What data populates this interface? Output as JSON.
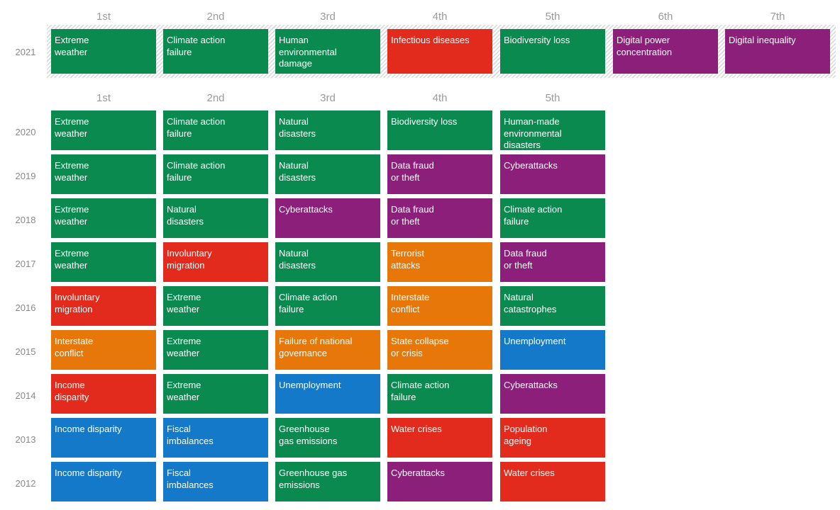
{
  "chart_data": {
    "type": "table",
    "title": "",
    "rank_headers_2021": [
      "1st",
      "2nd",
      "3rd",
      "4th",
      "5th",
      "6th",
      "7th"
    ],
    "rank_headers": [
      "1st",
      "2nd",
      "3rd",
      "4th",
      "5th"
    ],
    "category_colors": {
      "environmental": "#0b8a4f",
      "societal": "#e32b1d",
      "technological": "#8c1f7a",
      "geopolitical": "#e8770a",
      "economic": "#1479c9"
    },
    "rows": [
      {
        "year": "2021",
        "cells": [
          {
            "label": "Extreme\nweather",
            "category": "environmental"
          },
          {
            "label": "Climate action\nfailure",
            "category": "environmental"
          },
          {
            "label": "Human\nenvironmental\ndamage",
            "category": "environmental"
          },
          {
            "label": "Infectious diseases",
            "category": "societal"
          },
          {
            "label": "Biodiversity loss",
            "category": "environmental"
          },
          {
            "label": "Digital power\nconcentration",
            "category": "technological"
          },
          {
            "label": "Digital inequality",
            "category": "technological"
          }
        ]
      },
      {
        "year": "2020",
        "cells": [
          {
            "label": "Extreme\nweather",
            "category": "environmental"
          },
          {
            "label": "Climate action\nfailure",
            "category": "environmental"
          },
          {
            "label": "Natural\ndisasters",
            "category": "environmental"
          },
          {
            "label": "Biodiversity loss",
            "category": "environmental"
          },
          {
            "label": "Human-made\nenvironmental\ndisasters",
            "category": "environmental"
          }
        ]
      },
      {
        "year": "2019",
        "cells": [
          {
            "label": "Extreme\nweather",
            "category": "environmental"
          },
          {
            "label": "Climate action\nfailure",
            "category": "environmental"
          },
          {
            "label": "Natural\ndisasters",
            "category": "environmental"
          },
          {
            "label": "Data fraud\nor theft",
            "category": "technological"
          },
          {
            "label": "Cyberattacks",
            "category": "technological"
          }
        ]
      },
      {
        "year": "2018",
        "cells": [
          {
            "label": "Extreme\nweather",
            "category": "environmental"
          },
          {
            "label": "Natural\ndisasters",
            "category": "environmental"
          },
          {
            "label": "Cyberattacks",
            "category": "technological"
          },
          {
            "label": "Data fraud\nor theft",
            "category": "technological"
          },
          {
            "label": "Climate action\nfailure",
            "category": "environmental"
          }
        ]
      },
      {
        "year": "2017",
        "cells": [
          {
            "label": "Extreme\nweather",
            "category": "environmental"
          },
          {
            "label": "Involuntary\nmigration",
            "category": "societal"
          },
          {
            "label": "Natural\ndisasters",
            "category": "environmental"
          },
          {
            "label": "Terrorist\nattacks",
            "category": "geopolitical"
          },
          {
            "label": "Data fraud\nor theft",
            "category": "technological"
          }
        ]
      },
      {
        "year": "2016",
        "cells": [
          {
            "label": "Involuntary\nmigration",
            "category": "societal"
          },
          {
            "label": "Extreme\nweather",
            "category": "environmental"
          },
          {
            "label": "Climate action\nfailure",
            "category": "environmental"
          },
          {
            "label": "Interstate\nconflict",
            "category": "geopolitical"
          },
          {
            "label": "Natural\ncatastrophes",
            "category": "environmental"
          }
        ]
      },
      {
        "year": "2015",
        "cells": [
          {
            "label": "Interstate\nconflict",
            "category": "geopolitical"
          },
          {
            "label": "Extreme\nweather",
            "category": "environmental"
          },
          {
            "label": "Failure of national\ngovernance",
            "category": "geopolitical"
          },
          {
            "label": "State collapse\nor crisis",
            "category": "geopolitical"
          },
          {
            "label": "Unemployment",
            "category": "economic"
          }
        ]
      },
      {
        "year": "2014",
        "cells": [
          {
            "label": "Income\ndisparity",
            "category": "societal"
          },
          {
            "label": "Extreme\nweather",
            "category": "environmental"
          },
          {
            "label": "Unemployment",
            "category": "economic"
          },
          {
            "label": "Climate action\nfailure",
            "category": "environmental"
          },
          {
            "label": "Cyberattacks",
            "category": "technological"
          }
        ]
      },
      {
        "year": "2013",
        "cells": [
          {
            "label": "Income disparity",
            "category": "economic"
          },
          {
            "label": "Fiscal\nimbalances",
            "category": "economic"
          },
          {
            "label": "Greenhouse\ngas emissions",
            "category": "environmental"
          },
          {
            "label": "Water crises",
            "category": "societal"
          },
          {
            "label": "Population\nageing",
            "category": "societal"
          }
        ]
      },
      {
        "year": "2012",
        "cells": [
          {
            "label": "Income disparity",
            "category": "economic"
          },
          {
            "label": "Fiscal\nimbalances",
            "category": "economic"
          },
          {
            "label": "Greenhouse gas\nemissions",
            "category": "environmental"
          },
          {
            "label": "Cyberattacks",
            "category": "technological"
          },
          {
            "label": "Water crises",
            "category": "societal"
          }
        ]
      }
    ]
  }
}
